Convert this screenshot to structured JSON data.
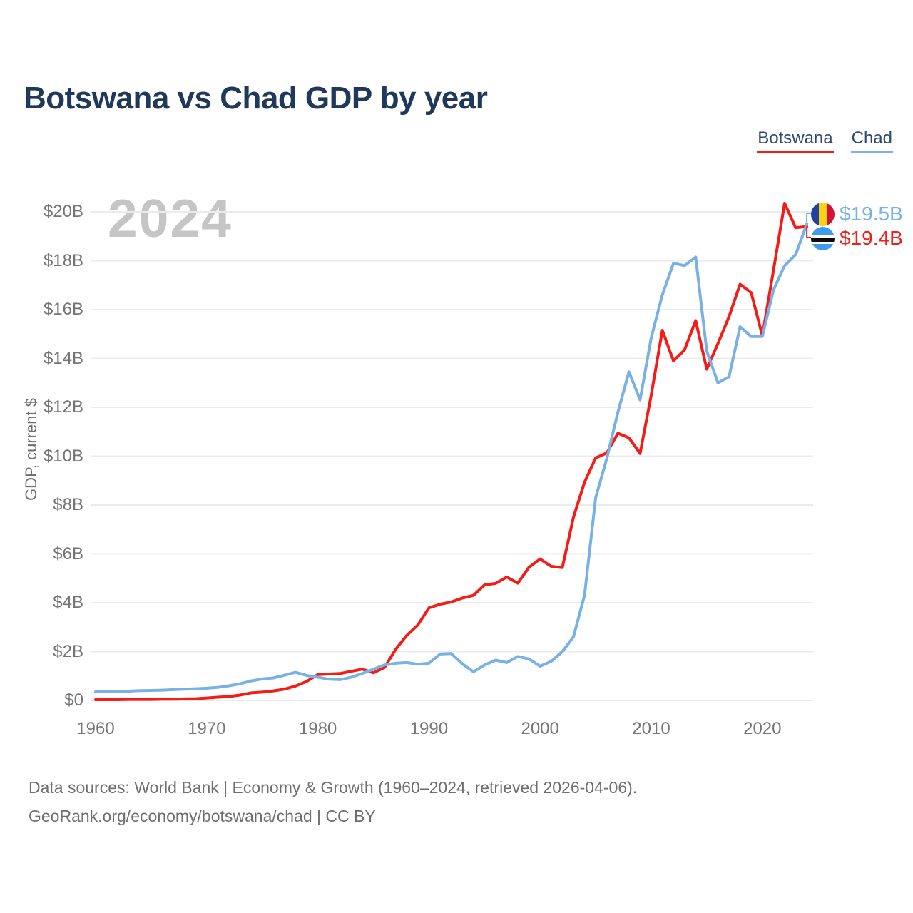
{
  "header": {
    "title": "Botswana vs Chad GDP by year"
  },
  "legend": {
    "items": [
      {
        "label": "Botswana",
        "color": "#f41c16"
      },
      {
        "label": "Chad",
        "color": "#79b1e3"
      }
    ]
  },
  "watermark": "2024",
  "y_axis": {
    "label": "GDP, current $",
    "ticks": [
      {
        "value": 0,
        "label": "$0"
      },
      {
        "value": 2,
        "label": "$2B"
      },
      {
        "value": 4,
        "label": "$4B"
      },
      {
        "value": 6,
        "label": "$6B"
      },
      {
        "value": 8,
        "label": "$8B"
      },
      {
        "value": 10,
        "label": "$10B"
      },
      {
        "value": 12,
        "label": "$12B"
      },
      {
        "value": 14,
        "label": "$14B"
      },
      {
        "value": 16,
        "label": "$16B"
      },
      {
        "value": 18,
        "label": "$18B"
      },
      {
        "value": 20,
        "label": "$20B"
      }
    ]
  },
  "x_axis": {
    "ticks": [
      {
        "year": 1960,
        "label": "1960"
      },
      {
        "year": 1970,
        "label": "1970"
      },
      {
        "year": 1980,
        "label": "1980"
      },
      {
        "year": 1990,
        "label": "1990"
      },
      {
        "year": 2000,
        "label": "2000"
      },
      {
        "year": 2010,
        "label": "2010"
      },
      {
        "year": 2020,
        "label": "2020"
      }
    ]
  },
  "chart_data": {
    "type": "line",
    "title": "Botswana vs Chad GDP by year",
    "xlabel": "",
    "ylabel": "GDP, current $",
    "xlim": [
      1960,
      2024
    ],
    "ylim": [
      0,
      20.5
    ],
    "grid": "horizontal",
    "years": [
      1960,
      1961,
      1962,
      1963,
      1964,
      1965,
      1966,
      1967,
      1968,
      1969,
      1970,
      1971,
      1972,
      1973,
      1974,
      1975,
      1976,
      1977,
      1978,
      1979,
      1980,
      1981,
      1982,
      1983,
      1984,
      1985,
      1986,
      1987,
      1988,
      1989,
      1990,
      1991,
      1992,
      1993,
      1994,
      1995,
      1996,
      1997,
      1998,
      1999,
      2000,
      2001,
      2002,
      2003,
      2004,
      2005,
      2006,
      2007,
      2008,
      2009,
      2010,
      2011,
      2012,
      2013,
      2014,
      2015,
      2016,
      2017,
      2018,
      2019,
      2020,
      2021,
      2022,
      2023,
      2024
    ],
    "unit": "billion USD, current $",
    "series": [
      {
        "name": "Botswana",
        "color": "#f41c16",
        "values": [
          0.03,
          0.03,
          0.03,
          0.04,
          0.04,
          0.04,
          0.05,
          0.05,
          0.06,
          0.07,
          0.1,
          0.13,
          0.16,
          0.22,
          0.31,
          0.34,
          0.39,
          0.46,
          0.59,
          0.78,
          1.06,
          1.08,
          1.1,
          1.19,
          1.28,
          1.13,
          1.35,
          2.09,
          2.66,
          3.09,
          3.79,
          3.94,
          4.03,
          4.19,
          4.3,
          4.73,
          4.79,
          5.05,
          4.8,
          5.45,
          5.79,
          5.49,
          5.44,
          7.49,
          8.93,
          9.93,
          10.13,
          10.94,
          10.75,
          10.11,
          12.5,
          15.15,
          13.9,
          14.35,
          15.55,
          13.56,
          14.61,
          15.71,
          17.04,
          16.69,
          14.93,
          17.61,
          20.35,
          19.35,
          19.4
        ]
      },
      {
        "name": "Chad",
        "color": "#79b1e3",
        "values": [
          0.35,
          0.36,
          0.37,
          0.38,
          0.4,
          0.41,
          0.42,
          0.44,
          0.46,
          0.48,
          0.5,
          0.53,
          0.6,
          0.68,
          0.8,
          0.88,
          0.92,
          1.03,
          1.15,
          1.02,
          0.95,
          0.87,
          0.85,
          0.95,
          1.1,
          1.28,
          1.45,
          1.52,
          1.55,
          1.48,
          1.52,
          1.9,
          1.92,
          1.5,
          1.17,
          1.45,
          1.65,
          1.55,
          1.8,
          1.7,
          1.4,
          1.6,
          2.0,
          2.6,
          4.3,
          8.3,
          9.9,
          11.8,
          13.45,
          12.3,
          14.85,
          16.6,
          17.9,
          17.8,
          18.15,
          14.3,
          13.0,
          13.25,
          15.3,
          14.9,
          14.9,
          16.8,
          17.8,
          18.25,
          19.5
        ]
      }
    ]
  },
  "end_labels": [
    {
      "series": "Chad",
      "label": "$19.5B",
      "color": "#79b1e3",
      "flag": "chad-flag-icon",
      "flag_colors": [
        "#1e429e",
        "#fcd116",
        "#d21238"
      ]
    },
    {
      "series": "Botswana",
      "label": "$19.4B",
      "color": "#f41c16",
      "flag": "botswana-flag-icon",
      "flag_colors": [
        "#3e9ce8",
        "#ffffff",
        "#0b0b0b"
      ]
    }
  ],
  "footer": {
    "line1": "Data sources: World Bank | Economy & Growth (1960–2024, retrieved 2026-04-06).",
    "line2": "GeoRank.org/economy/botswana/chad | CC BY"
  },
  "colors": {
    "title": "#20395b",
    "legend_text": "#2d4a6e",
    "axis_text": "#757575",
    "muted_text": "#6e6e6e",
    "watermark": "#c5c5c5",
    "grid": "#ebebeb",
    "botswana": "#f41c16",
    "chad": "#79b1e3"
  }
}
